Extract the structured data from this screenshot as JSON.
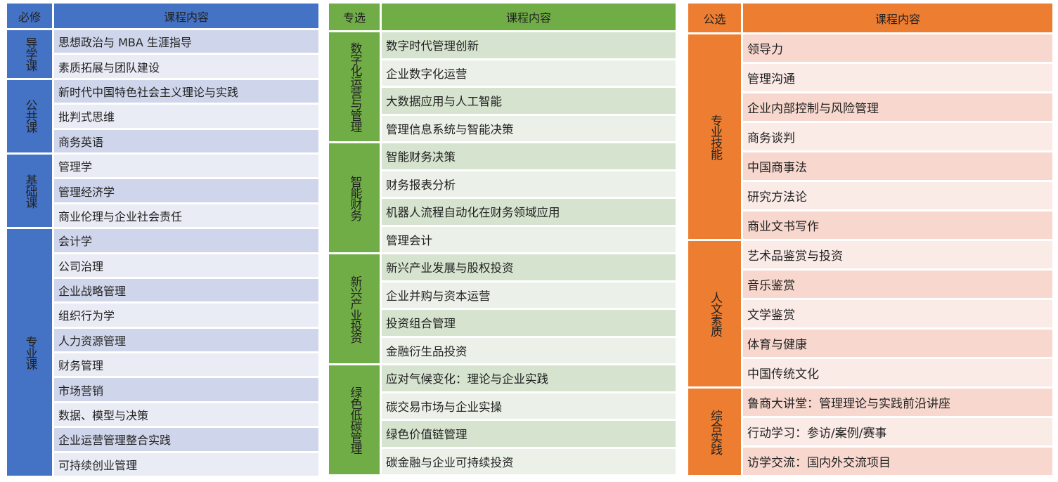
{
  "tables": [
    {
      "id": "required",
      "header": {
        "category": "必修",
        "content": "课程内容"
      },
      "colors": {
        "head": "#4472C4",
        "dark": "#CFD5EA",
        "light": "#E9EBF5"
      },
      "groups": [
        {
          "name": "导学课",
          "items": [
            "思想政治与 MBA 生涯指导",
            "素质拓展与团队建设"
          ]
        },
        {
          "name": "公共课",
          "items": [
            "新时代中国特色社会主义理论与实践",
            "批判式思维",
            "商务英语"
          ]
        },
        {
          "name": "基础课",
          "items": [
            "管理学",
            "管理经济学",
            "商业伦理与企业社会责任"
          ]
        },
        {
          "name": "专业课",
          "items": [
            "会计学",
            "公司治理",
            "企业战略管理",
            "组织行为学",
            "人力资源管理",
            "财务管理",
            "市场营销",
            "数据、模型与决策",
            "企业运营管理整合实践",
            "可持续创业管理"
          ]
        }
      ]
    },
    {
      "id": "specialized-elective",
      "header": {
        "category": "专选",
        "content": "课程内容"
      },
      "colors": {
        "head": "#70AD47",
        "dark": "#D6E3CF",
        "light": "#EBF1E8"
      },
      "groups": [
        {
          "name": "数字化运营与管理",
          "items": [
            "数字时代管理创新",
            "企业数字化运营",
            "大数据应用与人工智能",
            "管理信息系统与智能决策"
          ]
        },
        {
          "name": "智能财务",
          "items": [
            "智能财务决策",
            "财务报表分析",
            "机器人流程自动化在财务领域应用",
            "管理会计"
          ]
        },
        {
          "name": "新兴产业投资",
          "items": [
            "新兴产业发展与股权投资",
            "企业并购与资本运营",
            "投资组合管理",
            "金融衍生品投资"
          ]
        },
        {
          "name": "绿色低碳管理",
          "items": [
            "应对气候变化：理论与企业实践",
            "碳交易市场与企业实操",
            "绿色价值链管理",
            "碳金融与企业可持续投资"
          ]
        }
      ]
    },
    {
      "id": "public-elective",
      "header": {
        "category": "公选",
        "content": "课程内容"
      },
      "colors": {
        "head": "#ED7D31",
        "dark": "#F8D8CE",
        "light": "#FBEBE7"
      },
      "groups": [
        {
          "name": "专业技能",
          "items": [
            "领导力",
            "管理沟通",
            "企业内部控制与风险管理",
            "商务谈判",
            "中国商事法",
            "研究方法论",
            "商业文书写作"
          ]
        },
        {
          "name": "人文素质",
          "items": [
            "艺术品鉴赏与投资",
            "音乐鉴赏",
            "文学鉴赏",
            "体育与健康",
            "中国传统文化"
          ]
        },
        {
          "name": "综合实践",
          "items": [
            "鲁商大讲堂：管理理论与实践前沿讲座",
            "行动学习：参访/案例/赛事",
            "访学交流：国内外交流项目"
          ]
        }
      ]
    }
  ]
}
